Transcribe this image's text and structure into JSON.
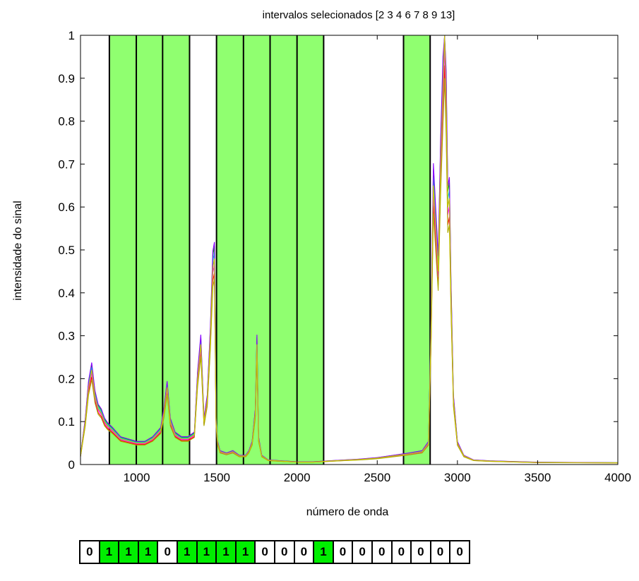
{
  "chart_data": {
    "type": "line",
    "title": "intervalos selecionados [2 3 4 6 7 8 9 13]",
    "xlabel": "número de onda",
    "ylabel": "intensidade do sinal",
    "xlim": [
      650,
      4000
    ],
    "ylim": [
      0,
      1
    ],
    "x_ticks": [
      1000,
      1500,
      2000,
      2500,
      3000,
      3500,
      4000
    ],
    "y_ticks": [
      0,
      0.1,
      0.2,
      0.3,
      0.4,
      0.5,
      0.6,
      0.7,
      0.8,
      0.9,
      1
    ],
    "y_tick_labels": [
      "0",
      "0.1",
      "0.2",
      "0.3",
      "0.4",
      "0.5",
      "0.6",
      "0.7",
      "0.8",
      "0.9",
      "1"
    ],
    "grid": false,
    "highlight_color": "#90ff70",
    "interval_boundaries": [
      830,
      998,
      1162,
      1330,
      1498,
      1666,
      1832,
      2000,
      2166,
      2664,
      2830
    ],
    "selected_intervals": [
      [
        830,
        998
      ],
      [
        998,
        1162
      ],
      [
        1162,
        1330
      ],
      [
        1498,
        1666
      ],
      [
        1666,
        1832
      ],
      [
        1832,
        2000
      ],
      [
        2000,
        2166
      ],
      [
        2664,
        2830
      ]
    ],
    "series_colors": [
      "#0000ff",
      "#ff0000",
      "#00aa00",
      "#ff00ff",
      "#00cccc",
      "#aaaa00",
      "#8800ff",
      "#cccc00"
    ],
    "spectrum": {
      "x": [
        650,
        680,
        700,
        720,
        740,
        760,
        780,
        800,
        820,
        850,
        900,
        950,
        1000,
        1050,
        1100,
        1150,
        1170,
        1190,
        1210,
        1240,
        1280,
        1320,
        1360,
        1380,
        1400,
        1420,
        1440,
        1460,
        1475,
        1485,
        1495,
        1505,
        1520,
        1560,
        1600,
        1640,
        1680,
        1700,
        1720,
        1740,
        1750,
        1760,
        1780,
        1820,
        1900,
        2000,
        2100,
        2200,
        2300,
        2400,
        2500,
        2600,
        2700,
        2780,
        2820,
        2835,
        2850,
        2865,
        2880,
        2895,
        2910,
        2920,
        2930,
        2940,
        2950,
        2960,
        2975,
        3000,
        3040,
        3100,
        3200,
        3500,
        4000
      ],
      "y": [
        0.02,
        0.1,
        0.18,
        0.22,
        0.16,
        0.13,
        0.12,
        0.1,
        0.09,
        0.08,
        0.06,
        0.055,
        0.05,
        0.05,
        0.06,
        0.08,
        0.12,
        0.18,
        0.1,
        0.07,
        0.06,
        0.06,
        0.07,
        0.2,
        0.28,
        0.1,
        0.15,
        0.3,
        0.46,
        0.48,
        0.1,
        0.05,
        0.03,
        0.025,
        0.03,
        0.02,
        0.02,
        0.03,
        0.05,
        0.12,
        0.28,
        0.06,
        0.02,
        0.01,
        0.008,
        0.006,
        0.006,
        0.008,
        0.01,
        0.012,
        0.015,
        0.02,
        0.025,
        0.03,
        0.05,
        0.3,
        0.65,
        0.55,
        0.45,
        0.7,
        0.88,
        1.0,
        0.85,
        0.6,
        0.62,
        0.4,
        0.15,
        0.05,
        0.02,
        0.01,
        0.008,
        0.005,
        0.004
      ]
    }
  },
  "selection_vector": {
    "bits": [
      "0",
      "1",
      "1",
      "1",
      "0",
      "1",
      "1",
      "1",
      "1",
      "0",
      "0",
      "0",
      "1",
      "0",
      "0",
      "0",
      "0",
      "0",
      "0",
      "0"
    ],
    "on_color": "#00ee00"
  }
}
